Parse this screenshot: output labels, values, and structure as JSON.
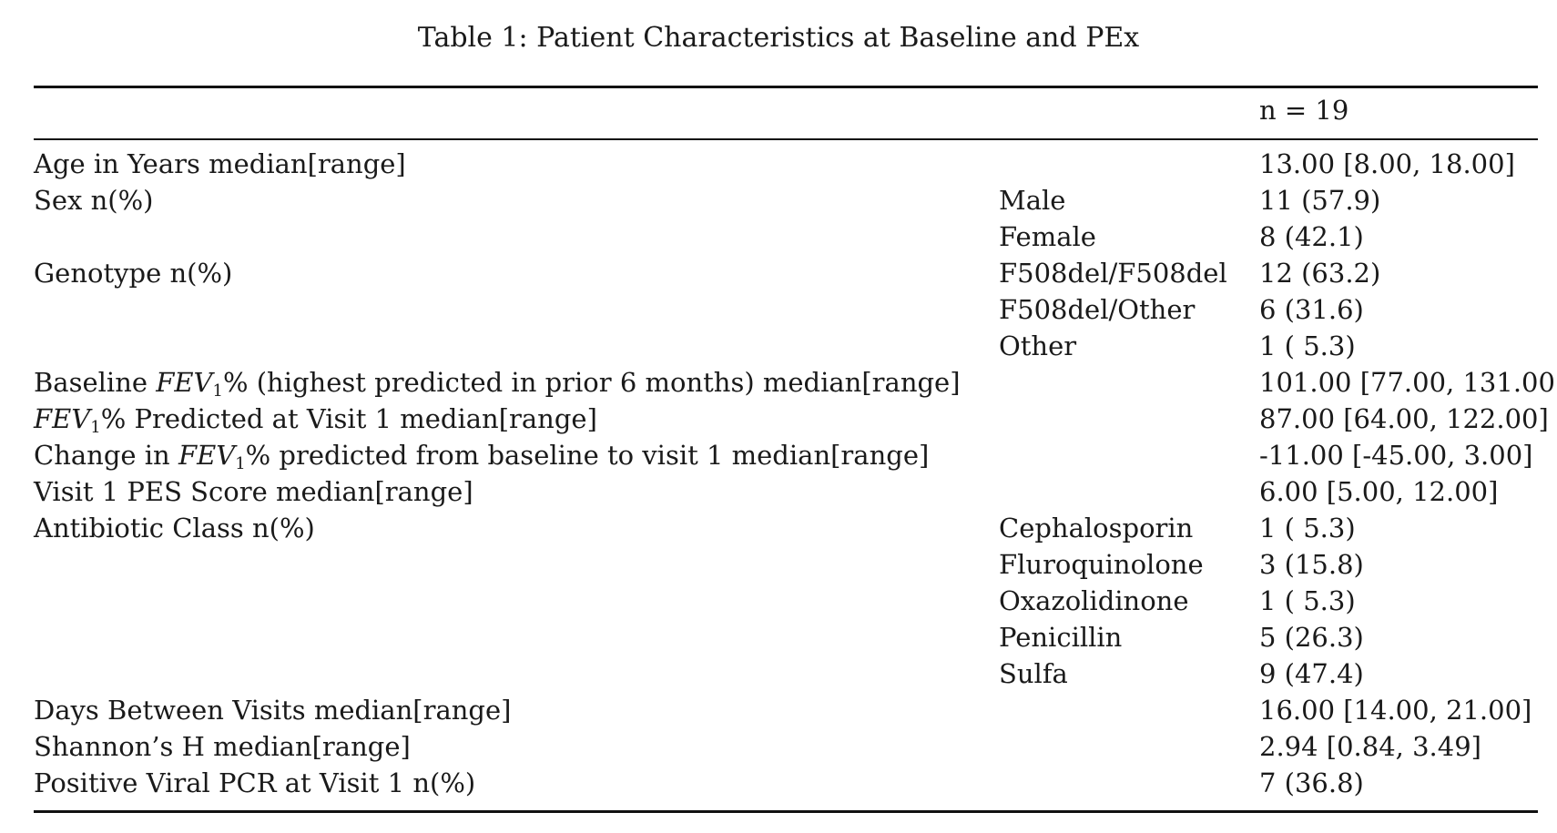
{
  "caption": "Table 1: Patient Characteristics at Baseline and PEx",
  "header": {
    "col3": "n = 19"
  },
  "rows": [
    {
      "label_html": "Age in Years median[range]",
      "category": "",
      "value": "13.00 [8.00, 18.00]"
    },
    {
      "label_html": "Sex n(%)",
      "category": "Male",
      "value": "11 (57.9)"
    },
    {
      "label_html": "",
      "category": "Female",
      "value": "8 (42.1)"
    },
    {
      "label_html": "Genotype n(%)",
      "category": "F508del/F508del",
      "value": "12 (63.2)"
    },
    {
      "label_html": "",
      "category": "F508del/Other",
      "value": "6 (31.6)"
    },
    {
      "label_html": "",
      "category": "Other",
      "value": "1 ( 5.3)"
    },
    {
      "label_html": "Baseline <span class=\"math\">FEV<sub>1</sub></span>% (highest predicted in prior 6 months) median[range]",
      "category": "",
      "value": "101.00 [77.00, 131.00]"
    },
    {
      "label_html": "<span class=\"math\">FEV<sub>1</sub></span>% Predicted at Visit 1 median[range]",
      "category": "",
      "value": "87.00 [64.00, 122.00]"
    },
    {
      "label_html": "Change in <span class=\"math\">FEV<sub>1</sub></span>% predicted from baseline to visit 1 median[range]",
      "category": "",
      "value": "-11.00 [-45.00, 3.00]"
    },
    {
      "label_html": "Visit 1 PES Score median[range]",
      "category": "",
      "value": "6.00 [5.00, 12.00]"
    },
    {
      "label_html": "Antibiotic Class n(%)",
      "category": "Cephalosporin",
      "value": "1 ( 5.3)"
    },
    {
      "label_html": "",
      "category": "Fluroquinolone",
      "value": "3 (15.8)"
    },
    {
      "label_html": "",
      "category": "Oxazolidinone",
      "value": "1 ( 5.3)"
    },
    {
      "label_html": "",
      "category": "Penicillin",
      "value": "5 (26.3)"
    },
    {
      "label_html": "",
      "category": "Sulfa",
      "value": "9 (47.4)"
    },
    {
      "label_html": "Days Between Visits median[range]",
      "category": "",
      "value": "16.00 [14.00, 21.00]"
    },
    {
      "label_html": "Shannon’s H median[range]",
      "category": "",
      "value": "2.94 [0.84, 3.49]"
    },
    {
      "label_html": "Positive Viral PCR at Visit 1 n(%)",
      "category": "",
      "value": "7 (36.8)"
    }
  ]
}
